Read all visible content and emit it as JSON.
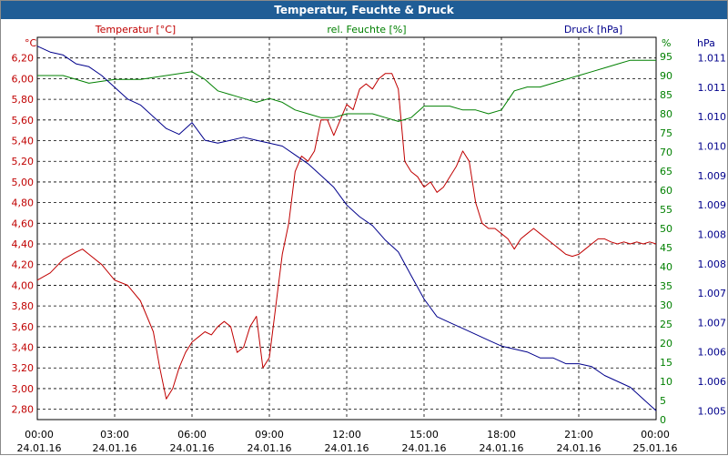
{
  "window": {
    "title": "Temperatur, Feuchte & Druck"
  },
  "colors": {
    "title_bar": "#1f5d96",
    "temperature": "#c00000",
    "humidity": "#008000",
    "pressure": "#00008b",
    "grid": "#000000"
  },
  "chart_data": {
    "type": "line",
    "title": "Temperatur, Feuchte & Druck",
    "grid": true,
    "x_axis": {
      "ticks": [
        {
          "time": "00:00",
          "date": "24.01.16"
        },
        {
          "time": "03:00",
          "date": "24.01.16"
        },
        {
          "time": "06:00",
          "date": "24.01.16"
        },
        {
          "time": "09:00",
          "date": "24.01.16"
        },
        {
          "time": "12:00",
          "date": "24.01.16"
        },
        {
          "time": "15:00",
          "date": "24.01.16"
        },
        {
          "time": "18:00",
          "date": "24.01.16"
        },
        {
          "time": "21:00",
          "date": "24.01.16"
        },
        {
          "time": "00:00",
          "date": "25.01.16"
        }
      ],
      "range_hours": [
        0,
        24
      ]
    },
    "axes": {
      "left": {
        "unit": "°C",
        "label": "Temperatur [°C]",
        "color": "#c00000",
        "ylim": [
          2.7,
          6.4
        ],
        "ticks": [
          "2,80",
          "3,00",
          "3,20",
          "3,40",
          "3,60",
          "3,80",
          "4,00",
          "4,20",
          "4,40",
          "4,60",
          "4,80",
          "5,00",
          "5,20",
          "5,40",
          "5,60",
          "5,80",
          "6,00",
          "6,20"
        ],
        "tick_values": [
          2.8,
          3.0,
          3.2,
          3.4,
          3.6,
          3.8,
          4.0,
          4.2,
          4.4,
          4.6,
          4.8,
          5.0,
          5.2,
          5.4,
          5.6,
          5.8,
          6.0,
          6.2
        ]
      },
      "middle": {
        "unit": "%",
        "label": "rel. Feuchte [%]",
        "color": "#008000",
        "ylim": [
          0,
          100
        ],
        "ticks": [
          "0",
          "5",
          "10",
          "15",
          "20",
          "25",
          "30",
          "35",
          "40",
          "45",
          "50",
          "55",
          "60",
          "65",
          "70",
          "75",
          "80",
          "85",
          "90",
          "95"
        ],
        "tick_values": [
          0,
          5,
          10,
          15,
          20,
          25,
          30,
          35,
          40,
          45,
          50,
          55,
          60,
          65,
          70,
          75,
          80,
          85,
          90,
          95
        ]
      },
      "right": {
        "unit": "hPa",
        "label": "Druck [hPa]",
        "color": "#00008b",
        "ylim": [
          1004.85,
          1011.35
        ],
        "ticks": [
          "1.005",
          "1.006",
          "1.006",
          "1.007",
          "1.007",
          "1.008",
          "1.008",
          "1.009",
          "1.009",
          "1.010",
          "1.010",
          "1.011",
          "1.011"
        ],
        "tick_values": [
          1005.0,
          1005.5,
          1006.0,
          1006.5,
          1007.0,
          1007.5,
          1008.0,
          1008.5,
          1009.0,
          1009.5,
          1010.0,
          1010.5,
          1011.0
        ]
      }
    },
    "series": [
      {
        "name": "Temperatur [°C]",
        "axis": "left",
        "color": "#c00000",
        "x": [
          0,
          0.5,
          1.0,
          1.5,
          1.75,
          2.0,
          2.5,
          3.0,
          3.5,
          4.0,
          4.5,
          4.75,
          5.0,
          5.25,
          5.5,
          5.75,
          6.0,
          6.25,
          6.5,
          6.75,
          7.0,
          7.25,
          7.5,
          7.75,
          8.0,
          8.25,
          8.5,
          8.75,
          9.0,
          9.25,
          9.5,
          9.75,
          10.0,
          10.25,
          10.5,
          10.75,
          11.0,
          11.25,
          11.5,
          11.75,
          12.0,
          12.25,
          12.5,
          12.75,
          13.0,
          13.25,
          13.5,
          13.75,
          14.0,
          14.25,
          14.5,
          14.75,
          15.0,
          15.25,
          15.5,
          15.75,
          16.0,
          16.25,
          16.5,
          16.75,
          17.0,
          17.25,
          17.5,
          17.75,
          18.0,
          18.25,
          18.5,
          18.75,
          19.0,
          19.25,
          19.5,
          19.75,
          20.0,
          20.25,
          20.5,
          20.75,
          21.0,
          21.25,
          21.5,
          21.75,
          22.0,
          22.25,
          22.5,
          22.75,
          23.0,
          23.25,
          23.5,
          23.75,
          24.0
        ],
        "values": [
          4.05,
          4.12,
          4.25,
          4.32,
          4.35,
          4.3,
          4.2,
          4.05,
          4.0,
          3.85,
          3.55,
          3.2,
          2.9,
          3.0,
          3.2,
          3.35,
          3.45,
          3.5,
          3.55,
          3.52,
          3.6,
          3.65,
          3.6,
          3.35,
          3.4,
          3.6,
          3.7,
          3.2,
          3.3,
          3.8,
          4.3,
          4.6,
          5.1,
          5.25,
          5.2,
          5.3,
          5.6,
          5.6,
          5.45,
          5.6,
          5.75,
          5.7,
          5.9,
          5.95,
          5.9,
          6.0,
          6.05,
          6.05,
          5.9,
          5.2,
          5.1,
          5.05,
          4.95,
          5.0,
          4.9,
          4.95,
          5.05,
          5.15,
          5.3,
          5.2,
          4.8,
          4.6,
          4.55,
          4.55,
          4.5,
          4.45,
          4.35,
          4.45,
          4.5,
          4.55,
          4.5,
          4.45,
          4.4,
          4.35,
          4.3,
          4.28,
          4.3,
          4.35,
          4.4,
          4.45,
          4.45,
          4.42,
          4.4,
          4.42,
          4.4,
          4.42,
          4.4,
          4.42,
          4.4
        ],
        "__note_values": "approximate readings"
      },
      {
        "name": "rel. Feuchte [%]",
        "axis": "middle",
        "color": "#008000",
        "x": [
          0,
          1,
          2,
          3,
          4,
          5,
          6,
          6.5,
          7,
          7.5,
          8,
          8.5,
          9,
          9.5,
          10,
          10.5,
          11,
          11.5,
          12,
          12.5,
          13,
          13.5,
          14,
          14.5,
          15,
          15.5,
          16,
          16.5,
          17,
          17.5,
          18,
          18.5,
          19,
          19.5,
          20,
          20.5,
          21,
          21.5,
          22,
          22.5,
          23,
          23.5,
          24
        ],
        "values": [
          90,
          90,
          88,
          89,
          89,
          90,
          91,
          89,
          86,
          85,
          84,
          83,
          84,
          83,
          81,
          80,
          79,
          79,
          80,
          80,
          80,
          79,
          78,
          79,
          82,
          82,
          82,
          81,
          81,
          80,
          81,
          86,
          87,
          87,
          88,
          89,
          90,
          91,
          92,
          93,
          94,
          94,
          94
        ]
      },
      {
        "name": "Druck [hPa]",
        "axis": "right",
        "color": "#00008b",
        "x": [
          0,
          0.5,
          1.0,
          1.5,
          2.0,
          2.5,
          3.0,
          3.5,
          4.0,
          4.5,
          5.0,
          5.5,
          6.0,
          6.5,
          7.0,
          7.5,
          8.0,
          8.5,
          9.0,
          9.5,
          10.0,
          10.5,
          11.0,
          11.5,
          12.0,
          12.5,
          13.0,
          13.5,
          14.0,
          14.5,
          15.0,
          15.5,
          16.0,
          16.5,
          17.0,
          17.5,
          18.0,
          18.5,
          19.0,
          19.5,
          20.0,
          20.5,
          21.0,
          21.5,
          22.0,
          22.5,
          23.0,
          23.5,
          24.0
        ],
        "values": [
          1011.2,
          1011.1,
          1011.05,
          1010.9,
          1010.85,
          1010.7,
          1010.5,
          1010.3,
          1010.2,
          1010.0,
          1009.8,
          1009.7,
          1009.9,
          1009.6,
          1009.55,
          1009.6,
          1009.65,
          1009.6,
          1009.55,
          1009.5,
          1009.35,
          1009.2,
          1009.0,
          1008.8,
          1008.5,
          1008.3,
          1008.15,
          1007.9,
          1007.7,
          1007.3,
          1006.9,
          1006.6,
          1006.5,
          1006.4,
          1006.3,
          1006.2,
          1006.1,
          1006.05,
          1006.0,
          1005.9,
          1005.9,
          1005.8,
          1005.8,
          1005.75,
          1005.6,
          1005.5,
          1005.4,
          1005.2,
          1005.0
        ]
      }
    ]
  }
}
